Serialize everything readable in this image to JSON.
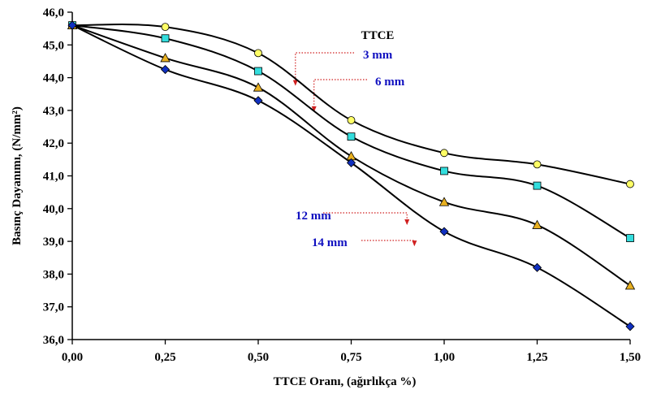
{
  "chart_data": {
    "type": "line",
    "xlabel": "TTCE Oranı, (ağırlıkça %)",
    "ylabel": "Basınç Dayanımı, (N/mm²)",
    "xlim": [
      0,
      1.5
    ],
    "ylim": [
      36,
      46
    ],
    "x": [
      0,
      0.25,
      0.5,
      0.75,
      1.0,
      1.25,
      1.5
    ],
    "x_tick_labels": [
      "0,00",
      "0,25",
      "0,50",
      "0,75",
      "1,00",
      "1,25",
      "1,50"
    ],
    "y_ticks": [
      36,
      37,
      38,
      39,
      40,
      41,
      42,
      43,
      44,
      45,
      46
    ],
    "y_tick_labels": [
      "36,0",
      "37,0",
      "38,0",
      "39,0",
      "40,0",
      "41,0",
      "42,0",
      "43,0",
      "44,0",
      "45,0",
      "46,0"
    ],
    "grid": false,
    "legend_title": "TTCE",
    "series": [
      {
        "name": "3 mm",
        "marker": "circle",
        "color": "#ffff66",
        "values": [
          45.6,
          45.55,
          44.75,
          42.7,
          41.7,
          41.35,
          40.75
        ]
      },
      {
        "name": "6 mm",
        "marker": "square",
        "color": "#33dddd",
        "values": [
          45.6,
          45.2,
          44.2,
          42.2,
          41.15,
          40.7,
          39.1
        ]
      },
      {
        "name": "12 mm",
        "marker": "triangle",
        "color": "#e8b020",
        "values": [
          45.6,
          44.6,
          43.7,
          41.6,
          40.2,
          39.5,
          37.65
        ]
      },
      {
        "name": "14 mm",
        "marker": "diamond",
        "color": "#1030c0",
        "values": [
          45.6,
          44.25,
          43.3,
          41.4,
          39.3,
          38.2,
          36.4
        ]
      }
    ],
    "annotations": [
      {
        "label": "3 mm",
        "target_x": 0.6,
        "target_y": 43.75
      },
      {
        "label": "6 mm",
        "target_x": 0.65,
        "target_y": 42.95
      },
      {
        "label": "12 mm",
        "target_x": 0.9,
        "target_y": 39.5
      },
      {
        "label": "14 mm",
        "target_x": 0.92,
        "target_y": 38.85
      }
    ]
  }
}
